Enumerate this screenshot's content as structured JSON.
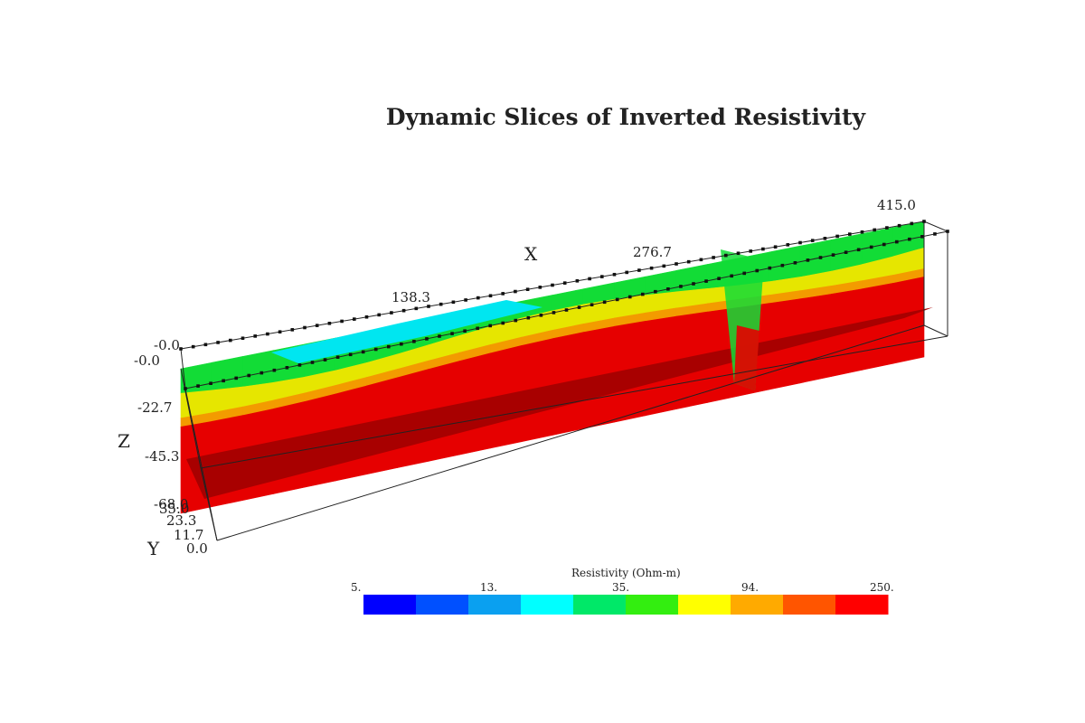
{
  "chart_data": {
    "type": "heatmap",
    "title": "Dynamic Slices of Inverted Resistivity",
    "x_axis": {
      "label": "X",
      "ticks": [
        "0.0",
        "138.3",
        "276.7",
        "415.0"
      ],
      "range": [
        0,
        415
      ]
    },
    "z_axis": {
      "label": "Z",
      "ticks": [
        "-0.0",
        "-22.7",
        "-45.3",
        "-68.0"
      ],
      "range": [
        -68,
        0
      ]
    },
    "y_axis": {
      "label": "Y",
      "ticks": [
        "0.0",
        "11.7",
        "23.3",
        "35.0"
      ],
      "range": [
        0,
        35
      ]
    },
    "x_corner_label": "-0.0",
    "colorbar": {
      "label": "Resistivity (Ohm-m)",
      "scale": "log",
      "tick_labels": [
        "5.",
        "13.",
        "35.",
        "94.",
        "250."
      ],
      "colors": [
        "#0000ff",
        "#0050ff",
        "#0aa0f0",
        "#00ffff",
        "#00e868",
        "#33ee10",
        "#ffff00",
        "#ffaa00",
        "#ff5500",
        "#ff0000"
      ]
    },
    "slice_colors": {
      "cyan": "#00e6f0",
      "green": "#12dc36",
      "yellow": "#e6e600",
      "orange": "#f39b00",
      "red": "#e60000",
      "dark_red": "#a80000"
    }
  }
}
